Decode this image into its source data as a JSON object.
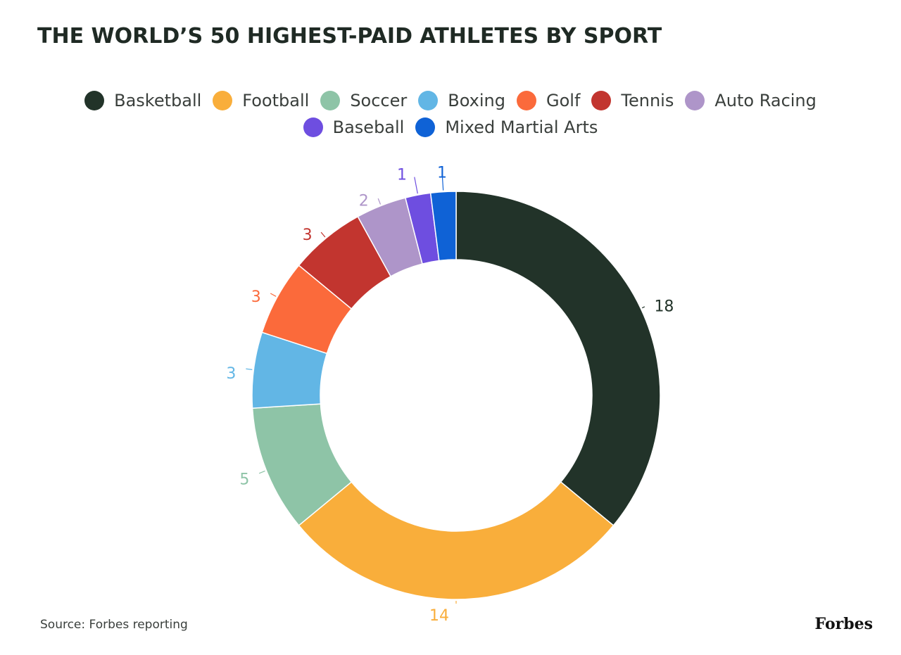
{
  "title": "THE WORLD’S 50 HIGHEST-PAID ATHLETES BY SPORT",
  "source": "Source: Forbes reporting",
  "brand": "Forbes",
  "chart_data": {
    "type": "pie",
    "variant": "donut",
    "title": "THE WORLD’S 50 HIGHEST-PAID ATHLETES BY SPORT",
    "legend_position": "top",
    "categories": [
      "Basketball",
      "Football",
      "Soccer",
      "Boxing",
      "Golf",
      "Tennis",
      "Auto Racing",
      "Baseball",
      "Mixed Martial Arts"
    ],
    "values": [
      18,
      14,
      5,
      3,
      3,
      3,
      2,
      1,
      1
    ],
    "colors": [
      "#223329",
      "#f9ae3b",
      "#8ec4a7",
      "#62b6e5",
      "#fb6a3b",
      "#c2352f",
      "#ae95c9",
      "#6e4ee0",
      "#0f62d6"
    ],
    "labels": [
      "18",
      "14",
      "5",
      "3",
      "3",
      "3",
      "2",
      "1",
      "1"
    ]
  }
}
